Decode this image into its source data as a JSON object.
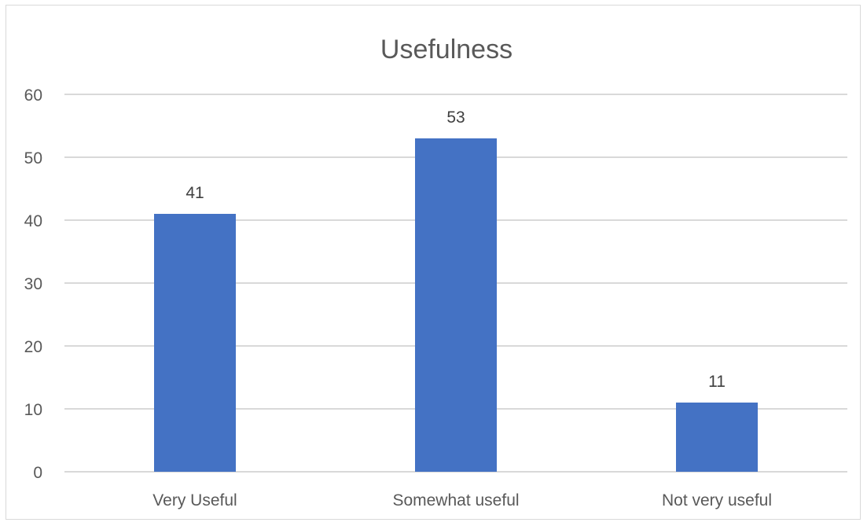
{
  "chart_data": {
    "type": "bar",
    "title": "Usefulness",
    "categories": [
      "Very Useful",
      "Somewhat useful",
      "Not very useful"
    ],
    "values": [
      41,
      53,
      11
    ],
    "ylim": [
      0,
      60
    ],
    "yticks": [
      0,
      10,
      20,
      30,
      40,
      50,
      60
    ],
    "grid": true,
    "data_labels": true,
    "legend": "none",
    "colors": {
      "bar": "#4472c4",
      "grid": "#d9d9d9",
      "text": "#595959"
    }
  }
}
